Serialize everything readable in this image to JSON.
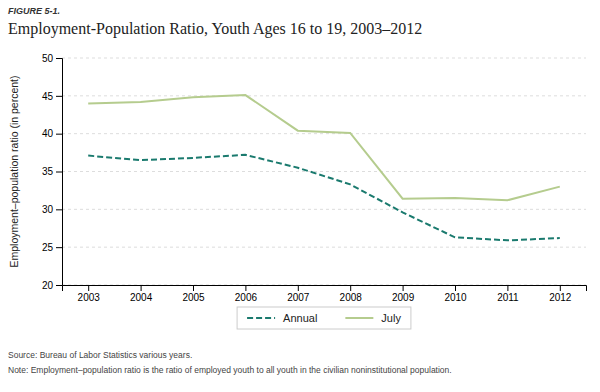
{
  "chart_data": {
    "type": "line",
    "subtitle": "FIGURE 5-1.",
    "title": "Employment-Population Ratio, Youth Ages 16 to 19, 2003–2012",
    "y_label": "Employment–population ratio (in percent)",
    "annotations": [
      "Source: Bureau of Labor Statistics various years.",
      "Note: Employment–population ratio is the ratio of employed youth to all youth in the civilian noninstitutional population."
    ],
    "x": [
      2003,
      2004,
      2005,
      2006,
      2007,
      2008,
      2009,
      2010,
      2011,
      2012
    ],
    "series": [
      {
        "name": "Annual",
        "color": "#1a7a6e",
        "line_style": "dashed",
        "values": [
          37.1,
          36.5,
          36.8,
          37.2,
          35.5,
          33.3,
          29.6,
          26.3,
          25.9,
          26.2
        ]
      },
      {
        "name": "July",
        "color": "#b5cc8e",
        "line_style": "solid",
        "values": [
          44.0,
          44.2,
          44.8,
          45.1,
          40.4,
          40.1,
          31.4,
          31.5,
          31.2,
          33.0
        ]
      }
    ],
    "xlim": [
      2002.5,
      2012.5
    ],
    "xticks": [
      2003,
      2004,
      2005,
      2006,
      2007,
      2008,
      2009,
      2010,
      2011,
      2012
    ],
    "ylim": [
      20,
      50
    ],
    "yticks": [
      20,
      25,
      30,
      35,
      40,
      45,
      50
    ],
    "grid": true,
    "legend": "bottom"
  }
}
